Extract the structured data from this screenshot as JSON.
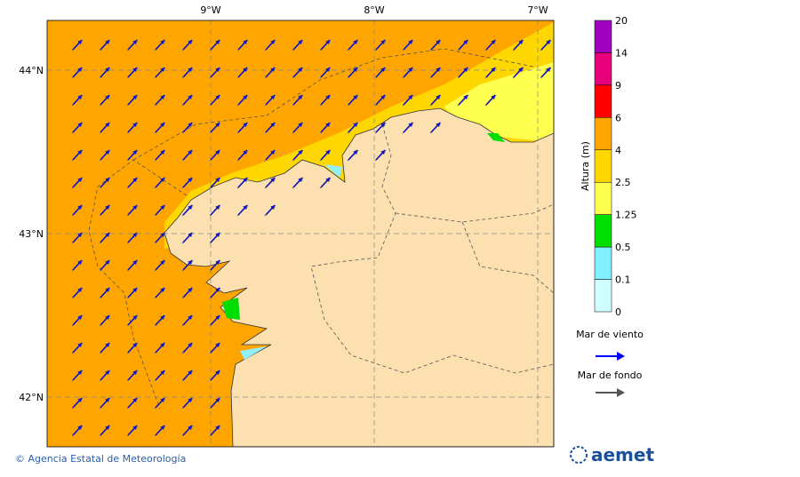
{
  "map": {
    "lon_labels": [
      "9°W",
      "8°W",
      "7°W"
    ],
    "lat_labels": [
      "44°N",
      "43°N",
      "42°N"
    ]
  },
  "legend": {
    "title": "Altura (m)",
    "levels": [
      "20",
      "14",
      "9",
      "6",
      "4",
      "2.5",
      "1.25",
      "0.5",
      "0.1",
      "0"
    ],
    "wind_sea": "Mar de viento",
    "swell": "Mar de fondo"
  },
  "footer": {
    "copyright": "© Agencia Estatal de Meteorología",
    "logo": "aemet"
  }
}
